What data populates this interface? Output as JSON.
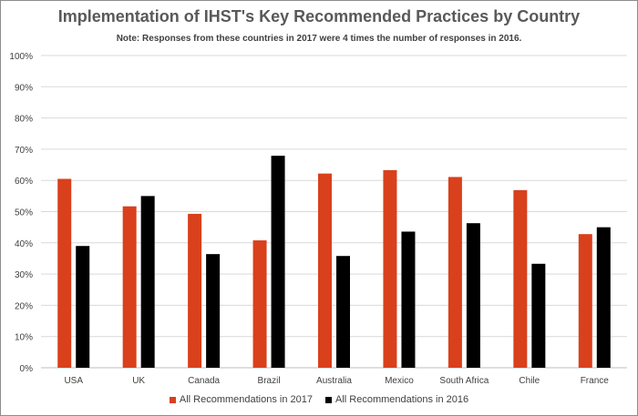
{
  "chart_data": {
    "type": "bar",
    "title": "Implementation of IHST's Key Recommended Practices by Country",
    "subtitle": "Note: Responses from these countries in 2017 were 4 times the number of responses in 2016.",
    "categories": [
      "USA",
      "UK",
      "Canada",
      "Brazil",
      "Australia",
      "Mexico",
      "South Africa",
      "Chile",
      "France"
    ],
    "series": [
      {
        "name": "All Recommendations in 2017",
        "color": "#d9401c",
        "values": [
          60.5,
          51.7,
          49.3,
          40.8,
          62.2,
          63.3,
          61.1,
          56.9,
          42.8
        ]
      },
      {
        "name": "All Recommendations in 2016",
        "color": "#000000",
        "values": [
          39.0,
          55.0,
          36.4,
          67.9,
          35.8,
          43.6,
          46.3,
          33.3,
          45.0
        ]
      }
    ],
    "ylim": [
      0,
      100
    ],
    "yticks": [
      "0%",
      "10%",
      "20%",
      "30%",
      "40%",
      "50%",
      "60%",
      "70%",
      "80%",
      "90%",
      "100%"
    ],
    "grid": true,
    "legend_position": "bottom",
    "xlabel": "",
    "ylabel": ""
  }
}
